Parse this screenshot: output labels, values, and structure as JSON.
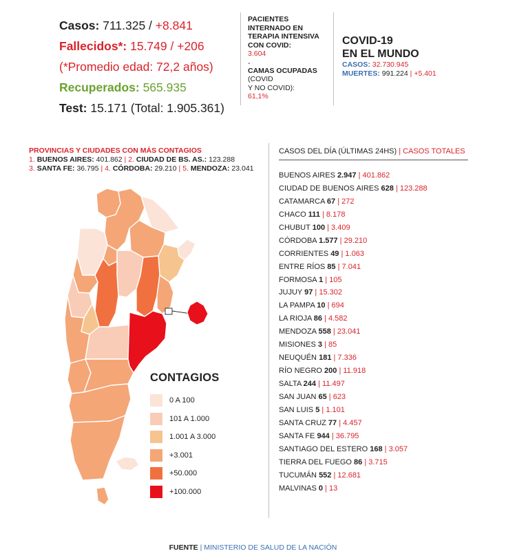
{
  "summary": {
    "cases_label": "Casos:",
    "cases_value": "711.325 /",
    "cases_new": "+8.841",
    "deaths_label": "Fallecidos*:",
    "deaths_value": "15.749 /",
    "deaths_new": "+206",
    "avg_age": "(*Promedio edad: 72,2 años)",
    "recovered_label": "Recuperados:",
    "recovered_value": "565.935",
    "tests_label": "Test:",
    "tests_value": "15.171 (Total: 1.905.361)"
  },
  "icu": {
    "title": "Pacientes internado en terapia intensiva con COVID:",
    "value": "3.604",
    "dash": "-",
    "beds_title": "Camas ocupadas",
    "beds_sub1": "(COVID",
    "beds_sub2": "Y NO COVID):",
    "beds_value": "61,1%"
  },
  "world": {
    "title_line1": "COVID-19",
    "title_line2": "EN EL MUNDO",
    "cases_label": "CASOS:",
    "cases_value": "32.730.945",
    "deaths_label": "MUERTES:",
    "deaths_value": "991.224",
    "deaths_sep": "|",
    "deaths_new": "+5.401"
  },
  "top_provinces": {
    "title": "Provincias y ciudades con más contagios",
    "items": [
      {
        "rank": "1.",
        "name": "BUENOS AIRES:",
        "value": "401.862"
      },
      {
        "rank": "2.",
        "name": "CIUDAD DE BS. AS.:",
        "value": "123.288"
      },
      {
        "rank": "3.",
        "name": "SANTA FE:",
        "value": "36.795"
      },
      {
        "rank": "4.",
        "name": "CÓRDOBA:",
        "value": "29.210"
      },
      {
        "rank": "5.",
        "name": "MENDOZA:",
        "value": "23.041"
      }
    ]
  },
  "legend": {
    "title": "CONTAGIOS",
    "items": [
      {
        "label": "0 A 100",
        "color": "#fbe3d8"
      },
      {
        "label": "101 A 1.000",
        "color": "#f8ccb7"
      },
      {
        "label": "1.001 A 3.000",
        "color": "#f6c48f"
      },
      {
        "label": "+3.001",
        "color": "#f4a677"
      },
      {
        "label": "+50.000",
        "color": "#f0713f"
      },
      {
        "label": "+100.000",
        "color": "#e8101a"
      }
    ]
  },
  "map": {
    "colors": {
      "low": "#fbe3d8",
      "mid_low": "#f8ccb7",
      "mid": "#f6c48f",
      "high": "#f4a677",
      "very_high": "#f0713f",
      "top": "#e8101a",
      "border": "#ffffff"
    }
  },
  "list": {
    "header_daily": "Casos del día (últimas 24hs)",
    "header_sep": "|",
    "header_total": "Casos totales",
    "rows": [
      {
        "name": "Buenos Aires",
        "daily": "2.947",
        "total": "401.862"
      },
      {
        "name": "Ciudad de Buenos Aires",
        "daily": "628",
        "total": "123.288"
      },
      {
        "name": "Catamarca",
        "daily": "67",
        "total": "272"
      },
      {
        "name": "Chaco",
        "daily": "111",
        "total": "8.178"
      },
      {
        "name": "Chubut",
        "daily": "100",
        "total": "3.409"
      },
      {
        "name": "Córdoba",
        "daily": "1.577",
        "total": "29.210"
      },
      {
        "name": "Corrientes",
        "daily": "49",
        "total": "1.063"
      },
      {
        "name": "Entre Ríos",
        "daily": "85",
        "total": "7.041"
      },
      {
        "name": "Formosa",
        "daily": "1",
        "total": "105"
      },
      {
        "name": "Jujuy",
        "daily": "97",
        "total": "15.302"
      },
      {
        "name": "La Pampa",
        "daily": "10",
        "total": "694"
      },
      {
        "name": "La Rioja",
        "daily": "86",
        "total": "4.582"
      },
      {
        "name": "Mendoza",
        "daily": "558",
        "total": "23.041"
      },
      {
        "name": "Misiones",
        "daily": "3",
        "total": "85"
      },
      {
        "name": "Neuquén",
        "daily": "181",
        "total": "7.336"
      },
      {
        "name": "Río Negro",
        "daily": "200",
        "total": "11.918"
      },
      {
        "name": "Salta",
        "daily": "244",
        "total": "11.497"
      },
      {
        "name": "San Juan",
        "daily": "65",
        "total": "623"
      },
      {
        "name": "San Luis",
        "daily": "5",
        "total": "1.101"
      },
      {
        "name": "Santa Cruz",
        "daily": "77",
        "total": "4.457"
      },
      {
        "name": "Santa Fe",
        "daily": "944",
        "total": "36.795"
      },
      {
        "name": "Santiago del Estero",
        "daily": "168",
        "total": "3.057"
      },
      {
        "name": "Tierra del Fuego",
        "daily": "86",
        "total": "3.715"
      },
      {
        "name": "Tucumán",
        "daily": "552",
        "total": "12.681"
      },
      {
        "name": "Malvinas",
        "daily": "0",
        "total": "13"
      }
    ]
  },
  "footer": {
    "label": "FUENTE",
    "sep": "|",
    "value": "MINISTERIO DE SALUD DE LA NACIÓN"
  }
}
